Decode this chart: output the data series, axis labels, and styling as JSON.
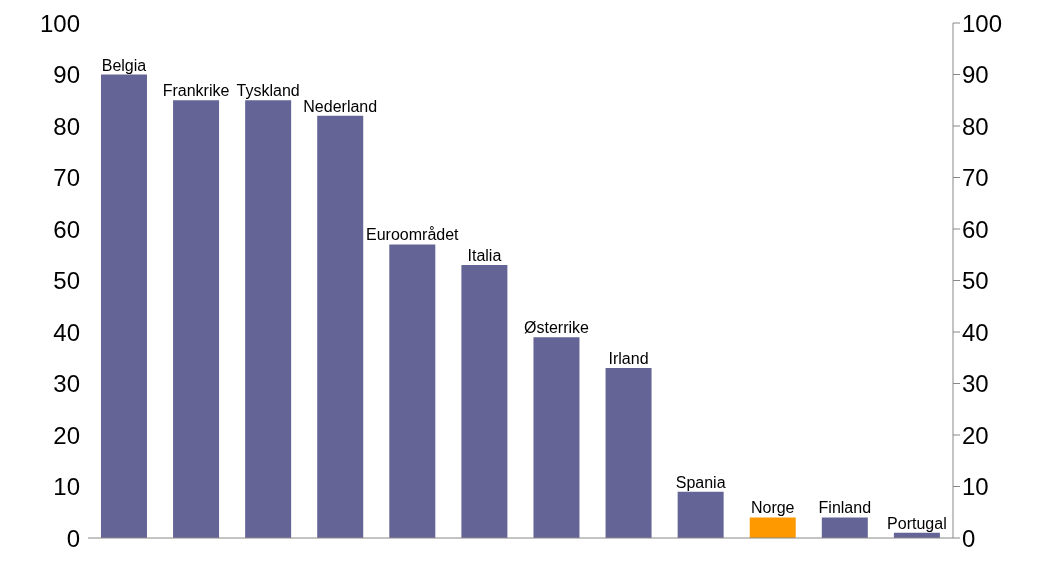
{
  "chart_data": {
    "type": "bar",
    "categories": [
      "Belgia",
      "Frankrike",
      "Tyskland",
      "Nederland",
      "Euroområdet",
      "Italia",
      "Østerrike",
      "Irland",
      "Spania",
      "Norge",
      "Finland",
      "Portugal"
    ],
    "values": [
      90,
      85,
      85,
      82,
      57,
      53,
      39,
      33,
      9,
      4,
      4,
      1
    ],
    "colors": [
      "#646496",
      "#646496",
      "#646496",
      "#646496",
      "#646496",
      "#646496",
      "#646496",
      "#646496",
      "#646496",
      "#ff9900",
      "#646496",
      "#646496"
    ],
    "ylim": [
      0,
      100
    ],
    "yticks": [
      0,
      10,
      20,
      30,
      40,
      50,
      60,
      70,
      80,
      90,
      100
    ],
    "y2lim": [
      0,
      100
    ],
    "y2ticks": [
      0,
      10,
      20,
      30,
      40,
      50,
      60,
      70,
      80,
      90,
      100
    ],
    "grid": false,
    "legend": false
  }
}
